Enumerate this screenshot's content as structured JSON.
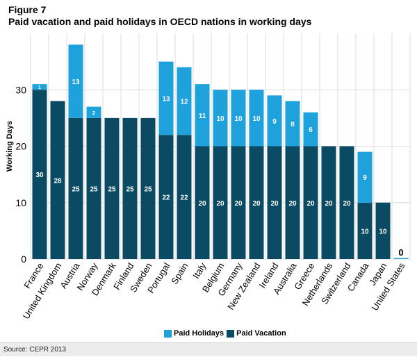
{
  "figure_label": "Figure 7",
  "source": "Source: CEPR 2013",
  "colors": {
    "holidays": "#1fa2dc",
    "vacation": "#0a4a62",
    "grid": "#dcdcdc",
    "background": "#ffffff"
  },
  "chart_data": {
    "type": "bar",
    "stacked": true,
    "title": "Paid vacation and paid holidays in OECD nations in working days",
    "xlabel": "",
    "ylabel": "Working Days",
    "ylim": [
      0,
      40
    ],
    "yticks": [
      0,
      10,
      20,
      30
    ],
    "grid": true,
    "legend_position": "bottom",
    "categories": [
      "France",
      "United Kingdom",
      "Austria",
      "Norway",
      "Denmark",
      "Finland",
      "Sweden",
      "Portugal",
      "Spain",
      "Italy",
      "Belgium",
      "Germany",
      "New Zealand",
      "Ireland",
      "Australia",
      "Greece",
      "Netherlands",
      "Switzerland",
      "Canada",
      "Japan",
      "United States"
    ],
    "series": [
      {
        "name": "Paid Vacation",
        "values": [
          30,
          28,
          25,
          25,
          25,
          25,
          25,
          22,
          22,
          20,
          20,
          20,
          20,
          20,
          20,
          20,
          20,
          20,
          10,
          10,
          0
        ]
      },
      {
        "name": "Paid Holidays",
        "values": [
          1,
          0,
          13,
          2,
          0,
          0,
          0,
          13,
          12,
          11,
          10,
          10,
          10,
          9,
          8,
          6,
          0,
          0,
          9,
          0,
          0
        ]
      }
    ],
    "legend": [
      "Paid Holidays",
      "Paid Vacation"
    ]
  }
}
